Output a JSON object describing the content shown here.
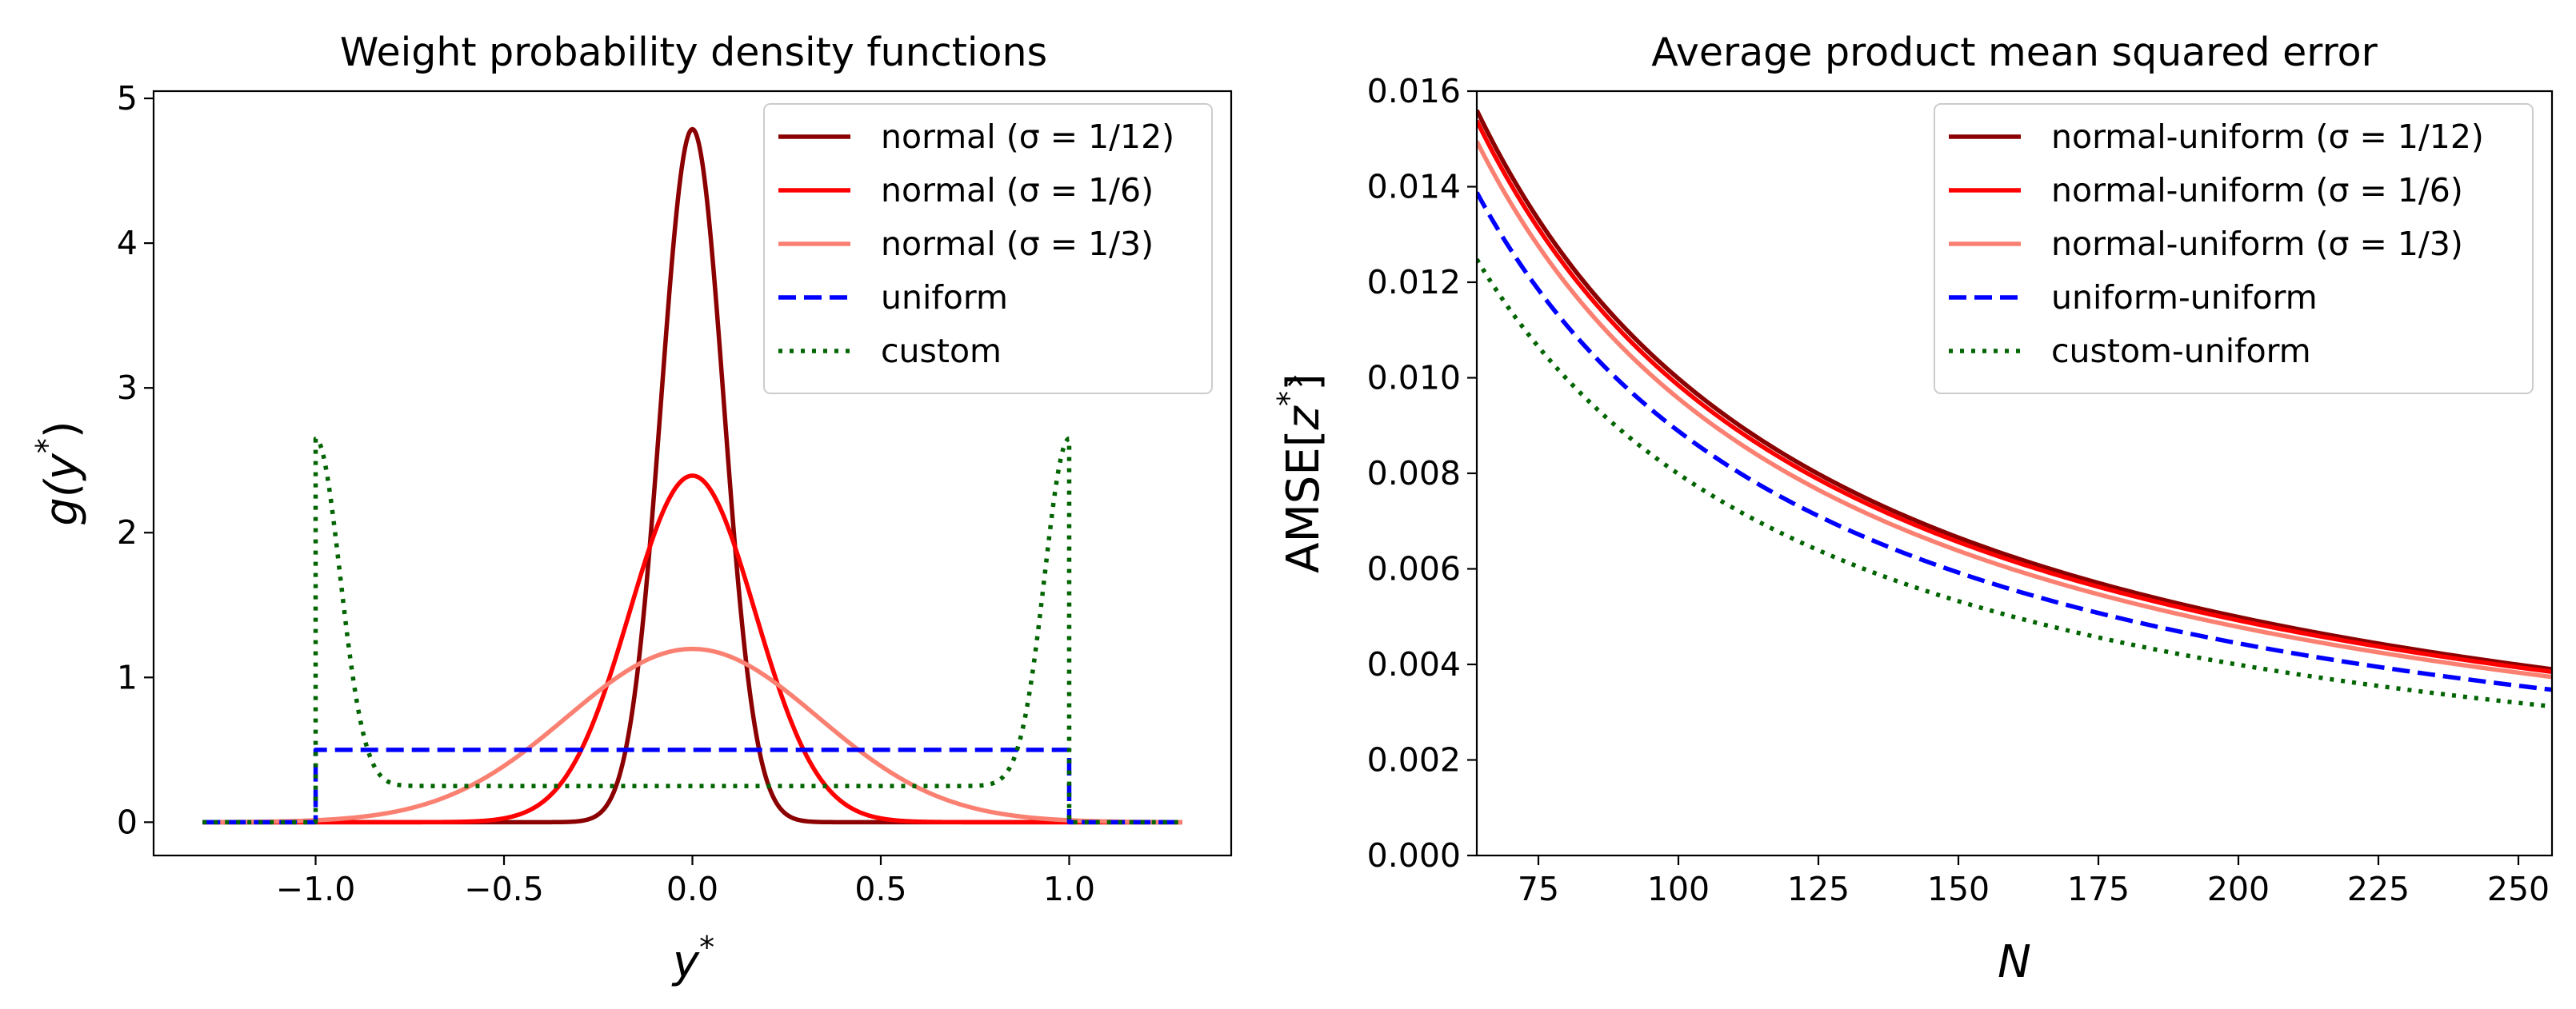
{
  "chart_data": [
    {
      "type": "line",
      "title": "Weight probability density functions",
      "xlabel": "y",
      "xlabel_sup": "*",
      "ylabel": "g(y",
      "ylabel_sup": "*",
      "ylabel_close": ")",
      "xlim": [
        -1.43,
        1.43
      ],
      "ylim": [
        -0.23,
        5.05
      ],
      "xticks": [
        -1.0,
        -0.5,
        0.0,
        0.5,
        1.0
      ],
      "xtick_labels": [
        "−1.0",
        "−0.5",
        "0.0",
        "0.5",
        "1.0"
      ],
      "yticks": [
        0,
        1,
        2,
        3,
        4,
        5
      ],
      "ytick_labels": [
        "0",
        "1",
        "2",
        "3",
        "4",
        "5"
      ],
      "legend_position": "upper right",
      "series": [
        {
          "name": "normal (σ = 1/12)",
          "dist": "normal",
          "sigma": 0.08333,
          "domain": [
            -1.3,
            1.3
          ],
          "color": "#8b0000",
          "dash": "solid"
        },
        {
          "name": "normal (σ = 1/6)",
          "dist": "normal",
          "sigma": 0.16667,
          "domain": [
            -1.3,
            1.3
          ],
          "color": "#ff0000",
          "dash": "solid"
        },
        {
          "name": "normal (σ = 1/3)",
          "dist": "normal",
          "sigma": 0.33333,
          "domain": [
            -1.3,
            1.3
          ],
          "color": "#fa8072",
          "dash": "solid"
        },
        {
          "name": "uniform",
          "dist": "uniform",
          "low": -1.0,
          "high": 1.0,
          "height": 0.5,
          "domain": [
            -1.3,
            1.3
          ],
          "color": "#0000ff",
          "dash": "dashed"
        },
        {
          "name": "custom",
          "dist": "custom",
          "base": 0.25,
          "peak": 2.65,
          "decay_sigma": 0.065,
          "low": -1.0,
          "high": 1.0,
          "domain": [
            -1.3,
            1.3
          ],
          "color": "#006400",
          "dash": "dotted"
        }
      ]
    },
    {
      "type": "line",
      "title": "Average product mean squared error",
      "xlabel": "N",
      "ylabel": "AMSE[",
      "ylabel_var": "z",
      "ylabel_sup": "*",
      "ylabel_close": "]",
      "xlim": [
        64,
        256
      ],
      "ylim": [
        0.0,
        0.016
      ],
      "xticks": [
        75,
        100,
        125,
        150,
        175,
        200,
        225,
        250
      ],
      "xtick_labels": [
        "75",
        "100",
        "125",
        "150",
        "175",
        "200",
        "225",
        "250"
      ],
      "yticks": [
        0.0,
        0.002,
        0.004,
        0.006,
        0.008,
        0.01,
        0.012,
        0.014,
        0.016
      ],
      "ytick_labels": [
        "0.000",
        "0.002",
        "0.004",
        "0.006",
        "0.008",
        "0.010",
        "0.012",
        "0.014",
        "0.016"
      ],
      "legend_position": "upper right",
      "series": [
        {
          "name": "normal-uniform (σ = 1/12)",
          "coef": 1.0,
          "y_at_64": 0.0156,
          "color": "#8b0000",
          "dash": "solid"
        },
        {
          "name": "normal-uniform (σ = 1/6)",
          "coef": 0.986,
          "y_at_64": 0.01538,
          "color": "#ff0000",
          "dash": "solid"
        },
        {
          "name": "normal-uniform (σ = 1/3)",
          "coef": 0.958,
          "y_at_64": 0.01495,
          "color": "#fa8072",
          "dash": "solid"
        },
        {
          "name": "uniform-uniform",
          "coef": 0.89,
          "y_at_64": 0.01388,
          "color": "#0000ff",
          "dash": "dashed"
        },
        {
          "name": "custom-uniform",
          "coef": 0.8,
          "y_at_64": 0.01248,
          "color": "#006400",
          "dash": "dotted"
        }
      ]
    }
  ]
}
